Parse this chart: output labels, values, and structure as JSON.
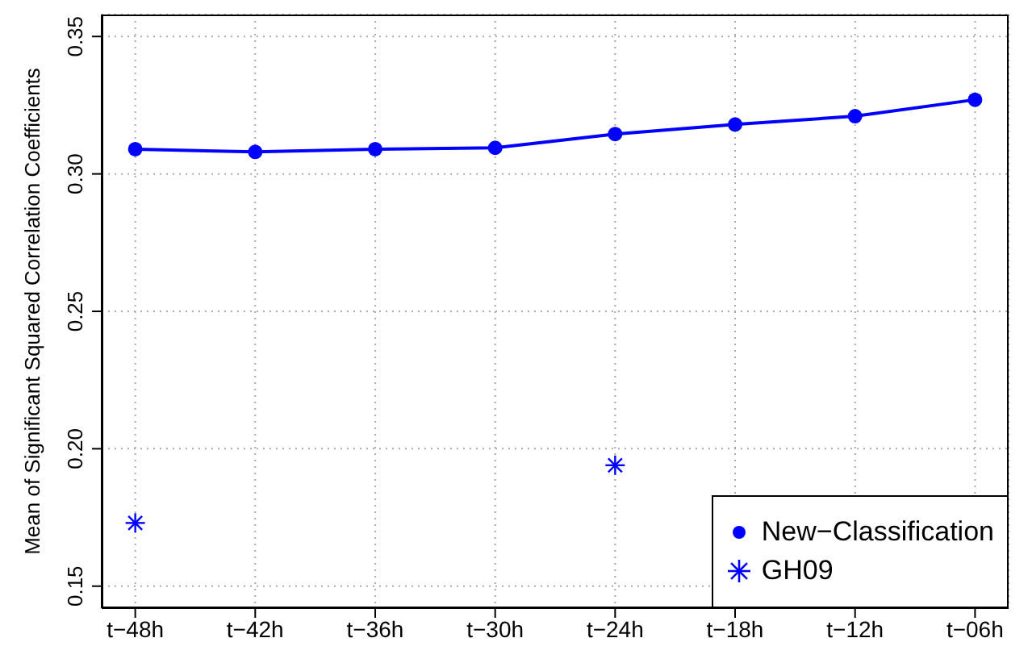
{
  "chart_data": {
    "type": "line",
    "ylabel": "Mean of Significant Squared Correlation Coefficients",
    "categories": [
      "t−48h",
      "t−42h",
      "t−36h",
      "t−30h",
      "t−24h",
      "t−18h",
      "t−12h",
      "t−06h"
    ],
    "series": [
      {
        "name": "New−Classification",
        "marker": "circle",
        "color": "#0000ff",
        "values": [
          0.309,
          0.308,
          0.309,
          0.3095,
          0.3145,
          0.318,
          0.321,
          0.327
        ]
      },
      {
        "name": "GH09",
        "type": "scatter",
        "marker": "cross",
        "color": "#0000ff",
        "values": [
          0.173,
          null,
          null,
          null,
          0.194,
          null,
          null,
          null
        ]
      }
    ],
    "ylim": [
      0.142,
      0.358
    ],
    "yticks": [
      0.15,
      {
        "value": 0.2,
        "label": "0.20"
      },
      0.25,
      {
        "value": 0.3,
        "label": "0.30"
      },
      0.35
    ],
    "grid": true,
    "legend": "bottom right",
    "line_style": "solid"
  }
}
